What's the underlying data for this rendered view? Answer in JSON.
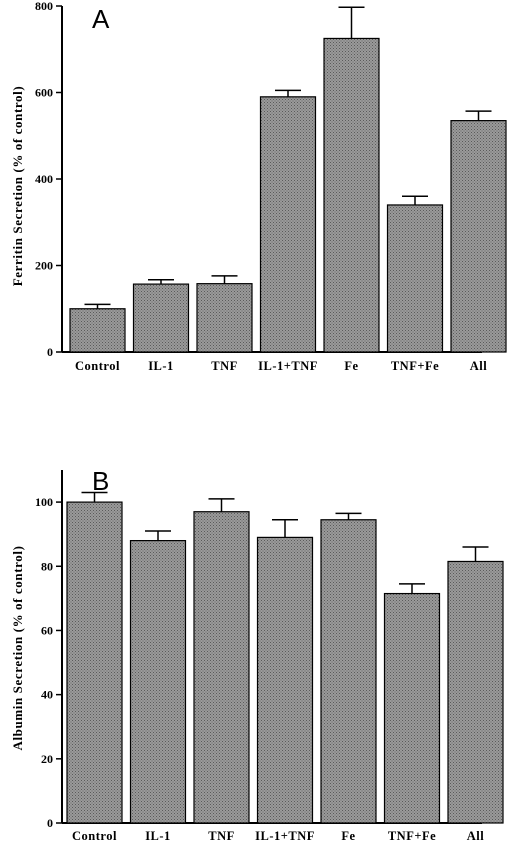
{
  "bar_fill": "#8a8a8a",
  "chart_data": [
    {
      "type": "bar",
      "panel_label": "A",
      "title": "",
      "xlabel": "",
      "ylabel": "Ferritin Secretion (% of control)",
      "categories": [
        "Control",
        "IL-1",
        "TNF",
        "IL-1+TNF",
        "Fe",
        "TNF+Fe",
        "All"
      ],
      "values": [
        100,
        157,
        158,
        590,
        725,
        340,
        535
      ],
      "errors": [
        10,
        10,
        18,
        15,
        72,
        20,
        22
      ],
      "ylim": [
        0,
        800
      ],
      "yticks": [
        0,
        200,
        400,
        600,
        800
      ],
      "grid": false
    },
    {
      "type": "bar",
      "panel_label": "B",
      "title": "",
      "xlabel": "",
      "ylabel": "Albumin Secretion (% of control)",
      "categories": [
        "Control",
        "IL-1",
        "TNF",
        "IL-1+TNF",
        "Fe",
        "TNF+Fe",
        "All"
      ],
      "values": [
        100,
        88,
        97,
        89,
        94.5,
        71.5,
        81.5
      ],
      "errors": [
        3,
        3,
        4,
        5.5,
        2,
        3,
        4.5
      ],
      "ylim": [
        0,
        110
      ],
      "yticks": [
        0,
        20,
        40,
        60,
        80,
        100
      ],
      "grid": false
    }
  ]
}
